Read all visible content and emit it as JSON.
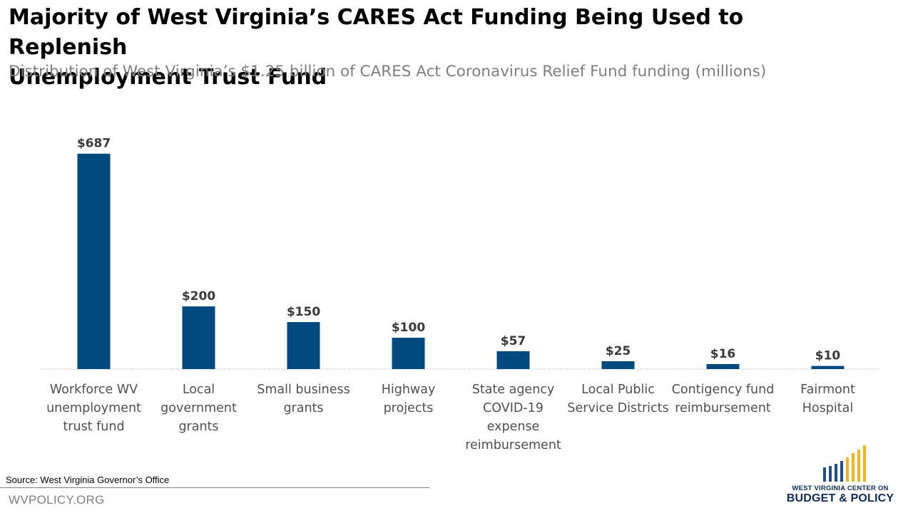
{
  "header": {
    "title_line1": "Majority of West Virginia’s CARES Act Funding Being Used to Replenish",
    "title_line2": "Unemployment Trust Fund",
    "subtitle": "Distribution of West Virginia’s $1.25 billion of CARES Act Coronavirus Relief Fund funding (millions)"
  },
  "chart_data": {
    "type": "bar",
    "title": "Majority of West Virginia’s CARES Act Funding Being Used to Replenish Unemployment Trust Fund",
    "subtitle": "Distribution of West Virginia’s $1.25 billion of CARES Act Coronavirus Relief Fund funding (millions)",
    "xlabel": "",
    "ylabel": "",
    "ylim": [
      0,
      700
    ],
    "grid": false,
    "bar_color": "#004a80",
    "categories": [
      [
        "Workforce WV",
        "unemployment",
        "trust fund"
      ],
      [
        "Local",
        "government",
        "grants"
      ],
      [
        "Small business",
        "grants"
      ],
      [
        "Highway",
        "projects"
      ],
      [
        "State agency",
        "COVID-19",
        "expense",
        "reimbursement"
      ],
      [
        "Local Public",
        "Service Districts"
      ],
      [
        "Contigency fund",
        "reimbursement"
      ],
      [
        "Fairmont",
        "Hospital"
      ]
    ],
    "values": [
      687,
      200,
      150,
      100,
      57,
      25,
      16,
      10
    ],
    "data_labels": [
      "$687",
      "$200",
      "$150",
      "$100",
      "$57",
      "$25",
      "$16",
      "$10"
    ]
  },
  "footer": {
    "source": "Source: West Virginia Governor’s Office",
    "url": "WVPOLICY.ORG",
    "logo_line1": "WEST VIRGINIA CENTER ON",
    "logo_line2": "BUDGET & POLICY",
    "logo_colors": [
      "#1f4e8c",
      "#f2b31d"
    ]
  }
}
